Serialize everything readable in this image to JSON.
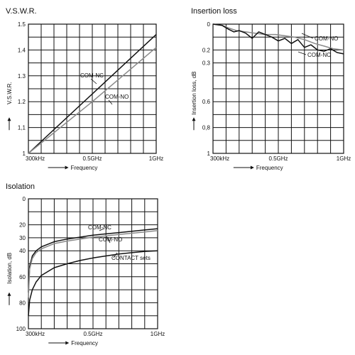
{
  "chart_data": [
    {
      "type": "line",
      "title": "V.S.W.R.",
      "xlabel": "Frequency",
      "ylabel": "V.S.W.R.",
      "x_ticks": [
        "300kHz",
        "0.5GHz",
        "1GHz"
      ],
      "y_ticks": [
        "1.5",
        "1.4",
        "1.3",
        "1.2",
        "1,1",
        "1"
      ],
      "ylim": [
        1,
        1.5
      ],
      "y_inverted": false,
      "grid": true,
      "series": [
        {
          "name": "COM-NC",
          "color": "#111111",
          "x": [
            0,
            0.5,
            1
          ],
          "y": [
            1.0,
            1.23,
            1.46
          ]
        },
        {
          "name": "COM-NO",
          "color": "#8a8a8a",
          "x": [
            0,
            0.5,
            1
          ],
          "y": [
            1.0,
            1.2,
            1.41
          ]
        }
      ]
    },
    {
      "type": "line",
      "title": "Insertion loss",
      "xlabel": "Frequency",
      "ylabel": "Insertion loss, dB",
      "x_ticks": [
        "300kHz",
        "0.5GHz",
        "1GHz"
      ],
      "y_ticks": [
        "0",
        "0.2",
        "0.3",
        "0.6",
        "0,8",
        "1"
      ],
      "ylim": [
        0,
        1
      ],
      "y_inverted": true,
      "grid": true,
      "series": [
        {
          "name": "COM-NO",
          "color": "#8a8a8a",
          "x": [
            0,
            0.07,
            0.12,
            0.18,
            0.25,
            0.32,
            0.4,
            0.48,
            0.55,
            0.62,
            0.7,
            0.78,
            0.85,
            0.92,
            1.0
          ],
          "y": [
            0.0,
            0.01,
            0.03,
            0.05,
            0.06,
            0.07,
            0.08,
            0.08,
            0.09,
            0.1,
            0.12,
            0.15,
            0.17,
            0.19,
            0.2
          ]
        },
        {
          "name": "COM-NC",
          "color": "#111111",
          "x": [
            0,
            0.07,
            0.12,
            0.16,
            0.2,
            0.25,
            0.3,
            0.35,
            0.4,
            0.45,
            0.5,
            0.55,
            0.6,
            0.65,
            0.7,
            0.75,
            0.8,
            0.85,
            0.9,
            0.95,
            1.0
          ],
          "y": [
            0.0,
            0.01,
            0.04,
            0.06,
            0.05,
            0.07,
            0.11,
            0.06,
            0.08,
            0.1,
            0.13,
            0.11,
            0.15,
            0.12,
            0.18,
            0.16,
            0.2,
            0.21,
            0.19,
            0.22,
            0.23
          ]
        }
      ]
    },
    {
      "type": "line",
      "title": "Isolation",
      "xlabel": "Frequency",
      "ylabel": "Isolation, dB",
      "x_ticks": [
        "300kHz",
        "0.5GHz",
        "1GHz"
      ],
      "y_ticks": [
        "0",
        "20",
        "30",
        "40",
        "60",
        "80",
        "100"
      ],
      "ylim": [
        0,
        100
      ],
      "y_inverted": true,
      "grid": true,
      "series": [
        {
          "name": "COM-NC",
          "color": "#111111",
          "x": [
            0,
            0.01,
            0.03,
            0.06,
            0.1,
            0.15,
            0.2,
            0.3,
            0.4,
            0.5,
            0.6,
            0.7,
            0.8,
            0.9,
            1.0
          ],
          "y": [
            72,
            52,
            44,
            40,
            37,
            35,
            33,
            31,
            29.5,
            28,
            27,
            26,
            25,
            24,
            23
          ]
        },
        {
          "name": "COM-NO",
          "color": "#8a8a8a",
          "x": [
            0,
            0.01,
            0.03,
            0.06,
            0.1,
            0.15,
            0.2,
            0.3,
            0.4,
            0.5,
            0.6,
            0.7,
            0.8,
            0.9,
            1.0
          ],
          "y": [
            76,
            54,
            46,
            41.5,
            38.5,
            36.5,
            34.5,
            32.5,
            31,
            29.5,
            28.5,
            27.5,
            26.5,
            25.5,
            24.5
          ]
        },
        {
          "name": "CONTACT sets",
          "color": "#111111",
          "x": [
            0,
            0.01,
            0.03,
            0.06,
            0.1,
            0.15,
            0.2,
            0.3,
            0.4,
            0.5,
            0.6,
            0.7,
            0.8,
            0.9,
            1.0
          ],
          "y": [
            90,
            78,
            70,
            64,
            59,
            56,
            53,
            50,
            47.5,
            45.5,
            44,
            42.5,
            41.5,
            40.5,
            40
          ]
        }
      ]
    }
  ]
}
